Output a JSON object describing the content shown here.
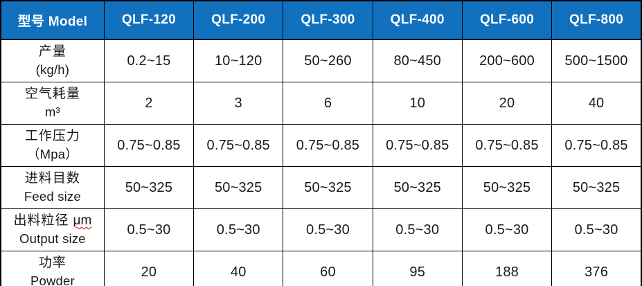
{
  "table": {
    "header": {
      "model_label": "型号 Model",
      "columns": [
        "QLF-120",
        "QLF-200",
        "QLF-300",
        "QLF-400",
        "QLF-600",
        "QLF-800"
      ]
    },
    "rows": [
      {
        "label_line1": "产量",
        "label_line2": "(kg/h)",
        "values": [
          "0.2~15",
          "10~120",
          "50~260",
          "80~450",
          "200~600",
          "500~1500"
        ]
      },
      {
        "label_line1": "空气耗量",
        "label_line2": "m³",
        "values": [
          "2",
          "3",
          "6",
          "10",
          "20",
          "40"
        ]
      },
      {
        "label_line1": "工作压力",
        "label_line2": "（Mpa）",
        "values": [
          "0.75~0.85",
          "0.75~0.85",
          "0.75~0.85",
          "0.75~0.85",
          "0.75~0.85",
          "0.75~0.85"
        ]
      },
      {
        "label_line1": "进料目数",
        "label_line2": "Feed size",
        "values": [
          "50~325",
          "50~325",
          "50~325",
          "50~325",
          "50~325",
          "50~325"
        ]
      },
      {
        "label_line1": "出料粒径",
        "label_unit": "μm",
        "label_line2": "Output size",
        "values": [
          "0.5~30",
          "0.5~30",
          "0.5~30",
          "0.5~30",
          "0.5~30",
          "0.5~30"
        ]
      },
      {
        "label_line1": "功率",
        "label_line2": "Powder",
        "values": [
          "20",
          "40",
          "60",
          "95",
          "188",
          "376"
        ]
      }
    ]
  },
  "colors": {
    "header_bg": "#1171BE",
    "header_text": "#FFFFFF",
    "border": "#000000",
    "body_text": "#1A1A1A",
    "spellcheck_underline": "#D40000",
    "page_bg": "#FFFFFF"
  }
}
